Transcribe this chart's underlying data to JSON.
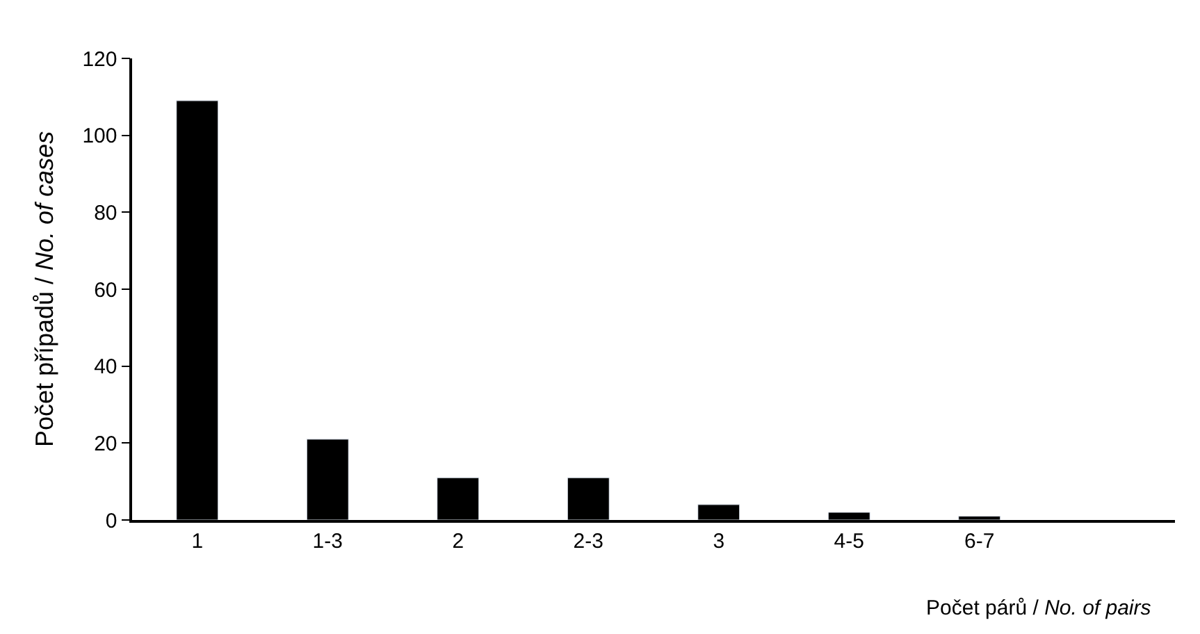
{
  "chart_data": {
    "type": "bar",
    "categories": [
      "1",
      "1-3",
      "2",
      "2-3",
      "3",
      "4-5",
      "6-7",
      null
    ],
    "values": [
      109,
      21,
      11,
      11,
      4,
      2,
      1,
      null
    ],
    "color": "#000000",
    "xlabel": "Počet párů / No. of pairs",
    "ylabel": "Počet případů / No. of cases",
    "ylim": [
      0,
      120
    ],
    "yticks": [
      0,
      20,
      40,
      60,
      80,
      100,
      120
    ]
  }
}
